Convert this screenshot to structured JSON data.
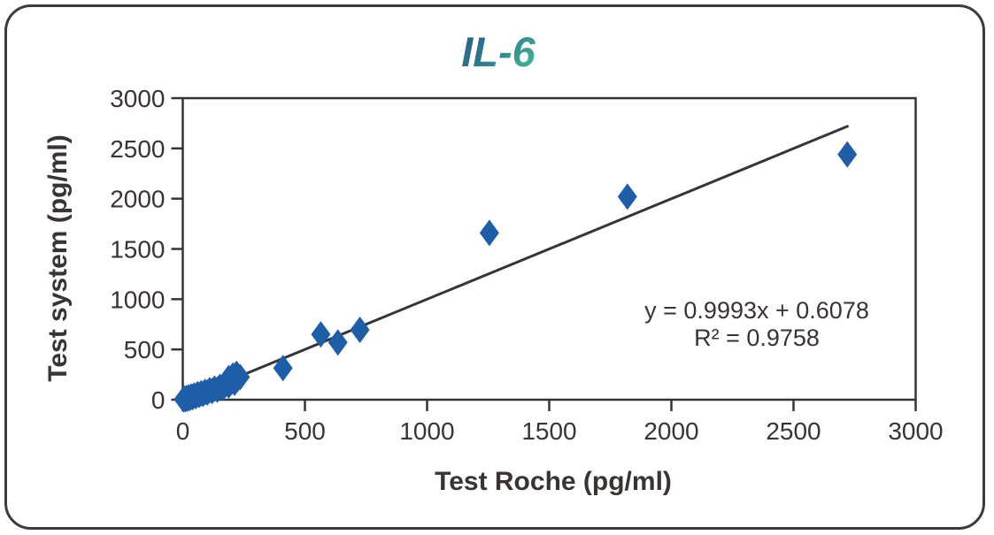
{
  "title": "IL-6",
  "axes": {
    "x_label": "Test Roche (pg/ml)",
    "y_label": "Test system (pg/ml)"
  },
  "annotation": {
    "line1": "y = 0.9993x + 0.6078",
    "line2": "R² = 0.9758"
  },
  "colors": {
    "marker": "#1e5ea8",
    "line": "#373435",
    "text": "#3a3332",
    "frame": "#393b40",
    "title_gradient_start": "#2a5a85",
    "title_gradient_mid": "#2e7a8c",
    "title_gradient_end": "#41ae93"
  },
  "chart_data": {
    "type": "scatter",
    "title": "IL-6",
    "xlabel": "Test Roche (pg/ml)",
    "ylabel": "Test system (pg/ml)",
    "xlim": [
      0,
      3000
    ],
    "ylim": [
      0,
      3000
    ],
    "xticks": [
      0,
      500,
      1000,
      1500,
      2000,
      2500,
      3000
    ],
    "yticks": [
      0,
      500,
      1000,
      1500,
      2000,
      2500,
      3000
    ],
    "grid": false,
    "legend": "none",
    "marker": "diamond",
    "points": [
      [
        3,
        2
      ],
      [
        6,
        12
      ],
      [
        10,
        5
      ],
      [
        15,
        17
      ],
      [
        19,
        9
      ],
      [
        24,
        24
      ],
      [
        29,
        15
      ],
      [
        34,
        32
      ],
      [
        40,
        25
      ],
      [
        46,
        42
      ],
      [
        53,
        34
      ],
      [
        60,
        55
      ],
      [
        67,
        46
      ],
      [
        75,
        65
      ],
      [
        83,
        57
      ],
      [
        91,
        78
      ],
      [
        100,
        70
      ],
      [
        110,
        95
      ],
      [
        120,
        86
      ],
      [
        130,
        110
      ],
      [
        141,
        100
      ],
      [
        152,
        128
      ],
      [
        164,
        118
      ],
      [
        176,
        152
      ],
      [
        188,
        142
      ],
      [
        200,
        178
      ],
      [
        212,
        168
      ],
      [
        224,
        205
      ],
      [
        188,
        215
      ],
      [
        205,
        240
      ],
      [
        220,
        258
      ],
      [
        235,
        225
      ],
      [
        410,
        315
      ],
      [
        565,
        650
      ],
      [
        635,
        570
      ],
      [
        725,
        695
      ],
      [
        1255,
        1660
      ],
      [
        1820,
        2020
      ],
      [
        2720,
        2440
      ]
    ],
    "trendline": {
      "slope": 0.9993,
      "intercept": 0.6078,
      "r_squared": 0.9758,
      "x_start": 225,
      "x_end": 2725
    }
  }
}
